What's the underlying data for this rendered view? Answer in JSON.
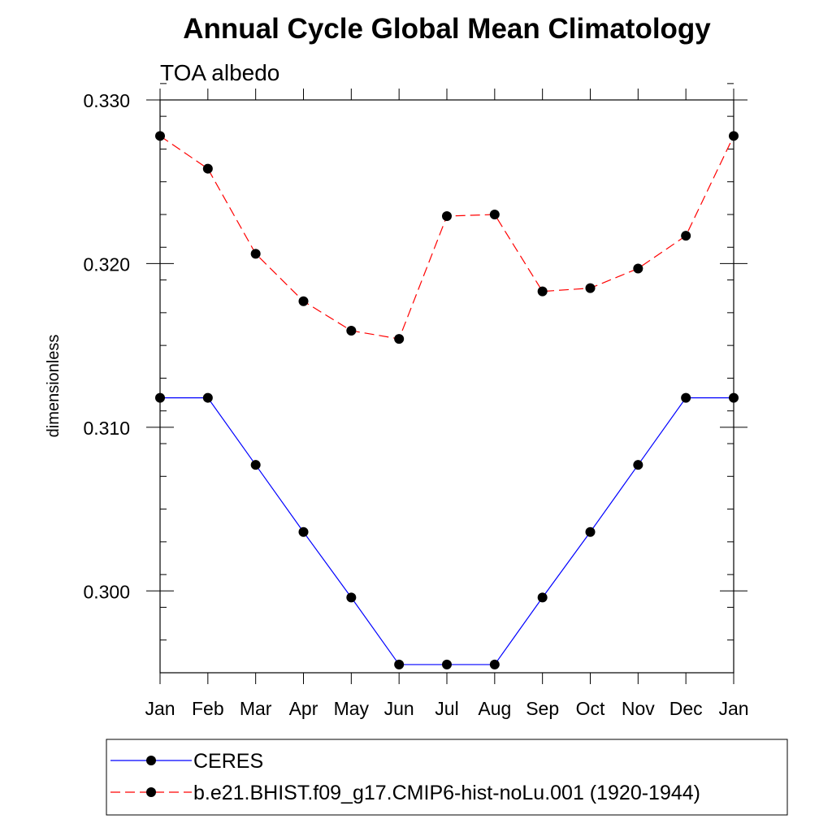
{
  "chart_data": {
    "type": "line",
    "title": "Annual Cycle Global Mean Climatology",
    "subtitle": "TOA albedo",
    "xlabel": "",
    "ylabel": "dimensionless",
    "categories": [
      "Jan",
      "Feb",
      "Mar",
      "Apr",
      "May",
      "Jun",
      "Jul",
      "Aug",
      "Sep",
      "Oct",
      "Nov",
      "Dec",
      "Jan"
    ],
    "ylim": [
      0.295,
      0.33
    ],
    "yticks": [
      0.3,
      0.31,
      0.32,
      0.33
    ],
    "ytick_labels": [
      "0.300",
      "0.310",
      "0.320",
      "0.330"
    ],
    "yminor_step": 0.002,
    "grid": false,
    "legend_position": "bottom",
    "series": [
      {
        "name": "CERES",
        "color": "#0000ff",
        "dash": "solid",
        "marker": "filled-circle",
        "values": [
          0.3118,
          0.3118,
          0.3077,
          0.3036,
          0.2996,
          0.2955,
          0.2955,
          0.2955,
          0.2996,
          0.3036,
          0.3077,
          0.3118,
          0.3118
        ]
      },
      {
        "name": "b.e21.BHIST.f09_g17.CMIP6-hist-noLu.001 (1920-1944)",
        "color": "#ff0000",
        "dash": "dashed",
        "marker": "filled-circle",
        "values": [
          0.3278,
          0.3258,
          0.3206,
          0.3177,
          0.3159,
          0.3154,
          0.3229,
          0.323,
          0.3183,
          0.3185,
          0.3197,
          0.3217,
          0.3278
        ]
      }
    ]
  }
}
